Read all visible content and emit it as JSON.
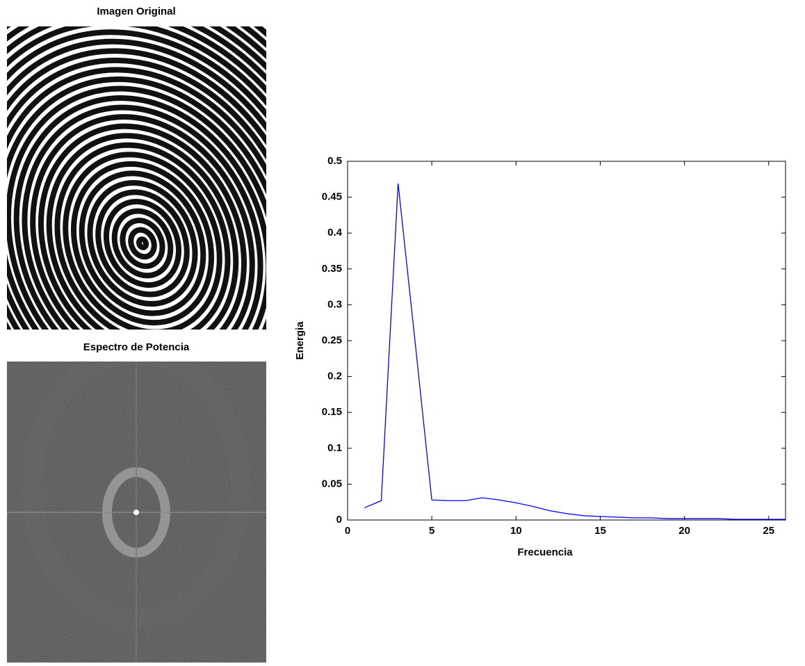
{
  "images": [
    {
      "title": "Imagen Original"
    },
    {
      "title": "Espectro de Potencia"
    }
  ],
  "chart_data": {
    "type": "line",
    "xlabel": "Frecuencia",
    "ylabel": "Energia",
    "x": [
      1,
      2,
      3,
      4,
      5,
      6,
      7,
      8,
      9,
      10,
      11,
      12,
      13,
      14,
      15,
      16,
      17,
      18,
      19,
      20,
      21,
      22,
      23,
      24,
      25,
      26
    ],
    "series": [
      {
        "color": "#0000ff",
        "values": [
          0.017,
          0.027,
          0.469,
          0.25,
          0.028,
          0.027,
          0.027,
          0.031,
          0.028,
          0.024,
          0.019,
          0.013,
          0.009,
          0.006,
          0.005,
          0.004,
          0.003,
          0.003,
          0.002,
          0.002,
          0.002,
          0.002,
          0.001,
          0.001,
          0.001,
          0.001
        ]
      }
    ],
    "xlim": [
      0,
      26
    ],
    "xticks": [
      0,
      5,
      10,
      15,
      20,
      25
    ],
    "ylim": [
      0,
      0.5
    ],
    "yticks": [
      0,
      0.05,
      0.1,
      0.15,
      0.2,
      0.25,
      0.3,
      0.35,
      0.4,
      0.45,
      0.5
    ]
  }
}
